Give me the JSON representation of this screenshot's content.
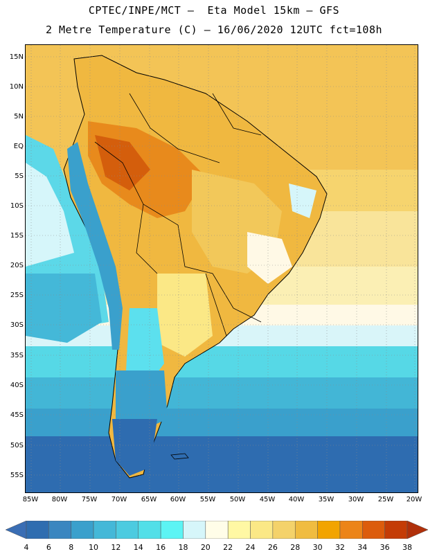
{
  "title": {
    "line1": "CPTEC/INPE/MCT –  Eta Model 15km – GFS",
    "line2": "2 Metre Temperature (C) – 16/06/2020 12UTC fct=108h"
  },
  "map": {
    "region": "South America",
    "variable": "2 Metre Temperature (C)",
    "lat_labels": [
      "15N",
      "10N",
      "5N",
      "EQ",
      "5S",
      "10S",
      "15S",
      "20S",
      "25S",
      "30S",
      "35S",
      "40S",
      "45S",
      "50S",
      "55S"
    ],
    "lon_labels": [
      "85W",
      "80W",
      "75W",
      "70W",
      "65W",
      "60W",
      "55W",
      "50W",
      "45W",
      "40W",
      "35W",
      "30W",
      "25W",
      "20W"
    ],
    "grid": "dotted",
    "land_outline_color": "#000000",
    "ocean_color_north": "#f2c45a",
    "ocean_color_south": "#2e6cb0"
  },
  "colorbar": {
    "labels": [
      "4",
      "6",
      "8",
      "10",
      "12",
      "14",
      "16",
      "18",
      "20",
      "22",
      "24",
      "26",
      "28",
      "30",
      "32",
      "34",
      "36",
      "38"
    ],
    "colors": [
      "#3a6eb4",
      "#2f6db0",
      "#3a86c0",
      "#3aa0cc",
      "#44b8d8",
      "#4ccbe0",
      "#52dfe8",
      "#5cf4f4",
      "#d6f6fa",
      "#fffde8",
      "#fff8a4",
      "#fbe886",
      "#f4d26a",
      "#f0bc40",
      "#f2a400",
      "#ec8418",
      "#dc5c0c",
      "#c43c06",
      "#b0300a"
    ],
    "unit": "C"
  }
}
